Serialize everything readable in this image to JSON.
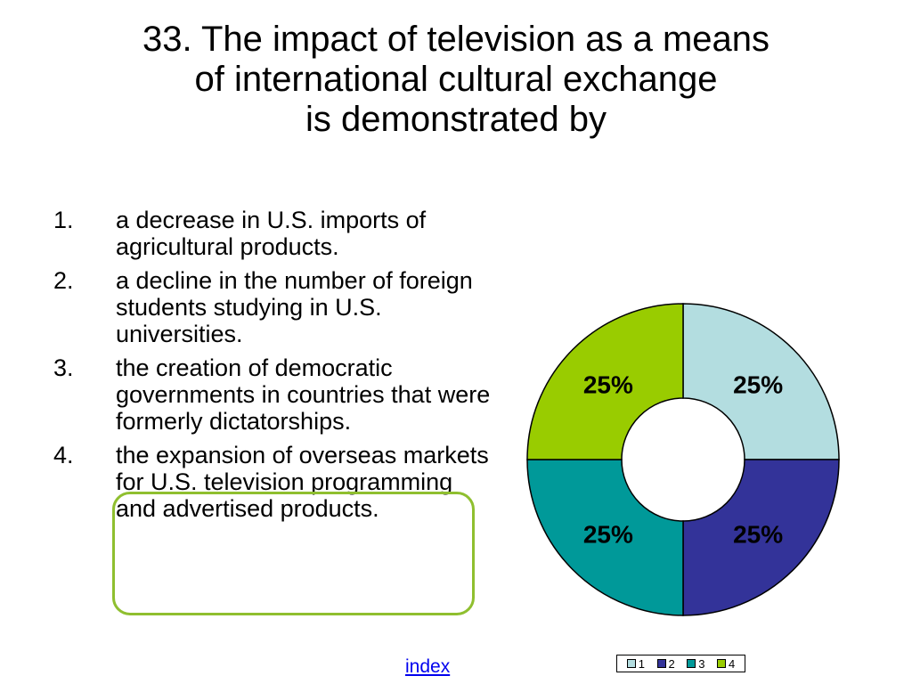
{
  "title": {
    "line1": "33. The impact of television as a means",
    "line2": "of international cultural exchange",
    "line3": "is demonstrated by"
  },
  "answers": [
    {
      "num": "1.",
      "text": "a decrease in U.S. imports of agricultural products."
    },
    {
      "num": "2.",
      "text": "a decline in the number of foreign students studying in U.S. universities."
    },
    {
      "num": "3.",
      "text": "the creation of democratic governments in countries that were formerly dictatorships."
    },
    {
      "num": "4.",
      "text": "the expansion of overseas markets for U.S. television programming and advertised products."
    }
  ],
  "highlighted_answer": 4,
  "chart_data": {
    "type": "pie",
    "variant": "doughnut",
    "categories": [
      "1",
      "2",
      "3",
      "4"
    ],
    "values": [
      25,
      25,
      25,
      25
    ],
    "data_labels": [
      "25%",
      "25%",
      "25%",
      "25%"
    ],
    "colors": [
      "#b3dde0",
      "#333399",
      "#009999",
      "#99cc00"
    ],
    "legend_position": "bottom-right"
  },
  "legend": {
    "items": [
      {
        "label": "1",
        "color": "#b3dde0"
      },
      {
        "label": "2",
        "color": "#333399"
      },
      {
        "label": "3",
        "color": "#009999"
      },
      {
        "label": "4",
        "color": "#99cc00"
      }
    ]
  },
  "footer": {
    "link_label": "index"
  },
  "colors": {
    "highlight_border": "#8fbf2f",
    "link": "#0000ee"
  }
}
